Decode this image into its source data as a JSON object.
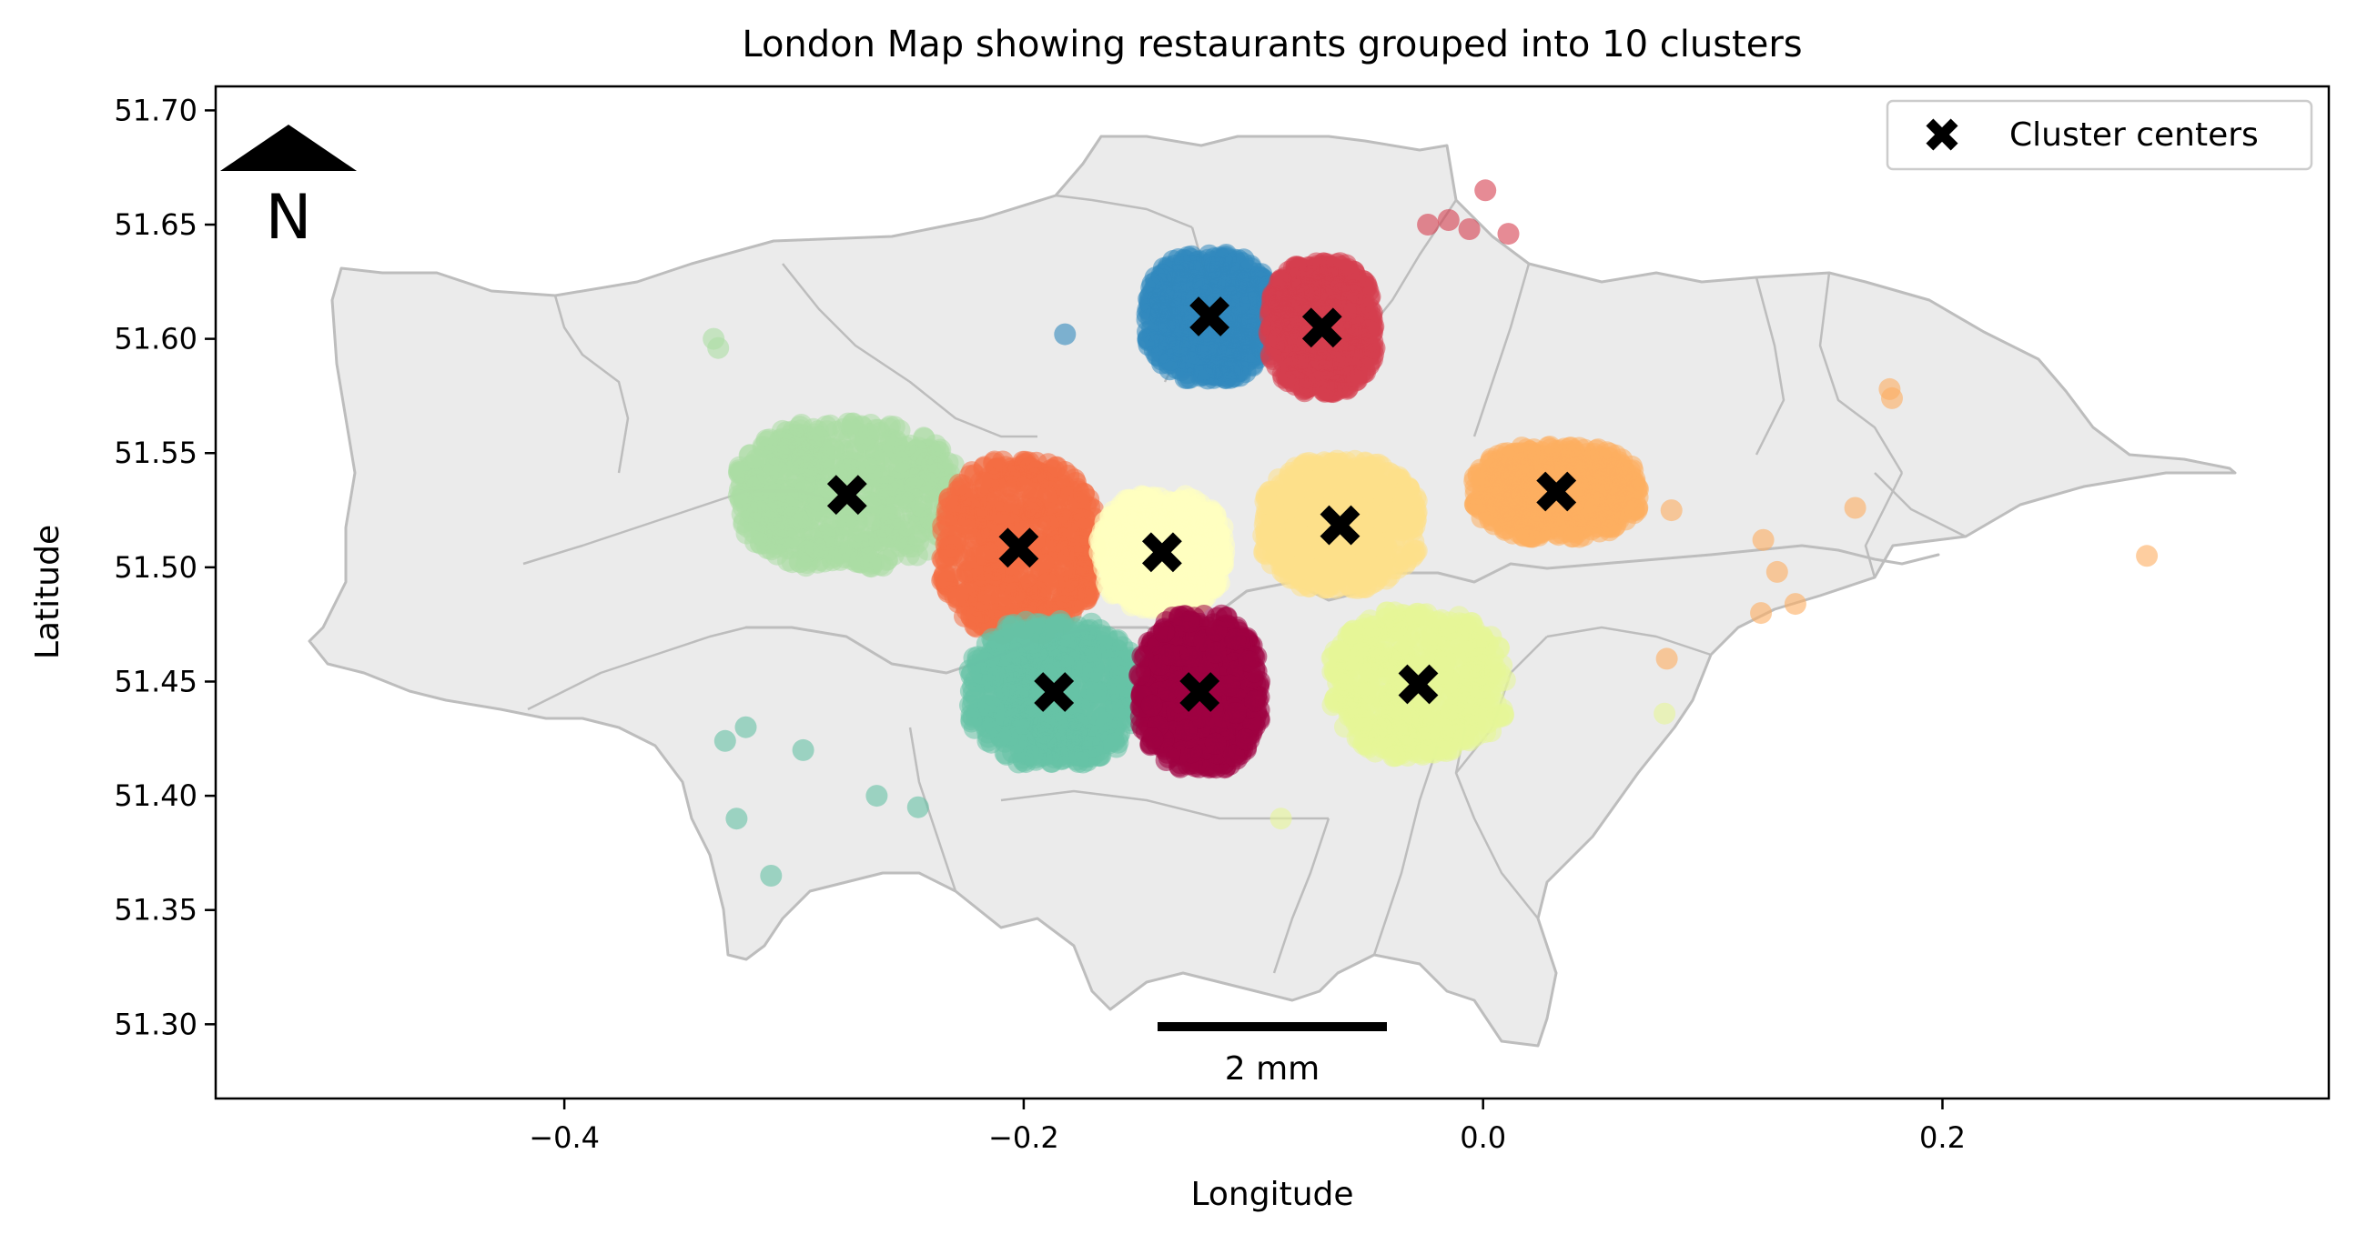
{
  "chart_data": {
    "type": "scatter",
    "title": "London Map showing restaurants grouped into 10 clusters",
    "xlabel": "Longitude",
    "ylabel": "Latitude",
    "xlim": [
      -0.5518,
      0.3682
    ],
    "ylim": [
      51.2675,
      51.7105
    ],
    "xticks": [
      {
        "value": -0.4,
        "label": "−0.4"
      },
      {
        "value": -0.2,
        "label": "−0.2"
      },
      {
        "value": 0.0,
        "label": "0.0"
      },
      {
        "value": 0.2,
        "label": "0.2"
      }
    ],
    "yticks": [
      {
        "value": 51.3,
        "label": "51.30"
      },
      {
        "value": 51.35,
        "label": "51.35"
      },
      {
        "value": 51.4,
        "label": "51.40"
      },
      {
        "value": 51.45,
        "label": "51.45"
      },
      {
        "value": 51.5,
        "label": "51.50"
      },
      {
        "value": 51.55,
        "label": "51.55"
      },
      {
        "value": 51.6,
        "label": "51.60"
      },
      {
        "value": 51.65,
        "label": "51.65"
      },
      {
        "value": 51.7,
        "label": "51.70"
      }
    ],
    "legend": {
      "label": "Cluster centers",
      "location": "upper right",
      "marker": "X"
    },
    "north_arrow": {
      "label": "N"
    },
    "scalebar": {
      "label": "2 mm"
    },
    "colors": {
      "boundary_fill": "#ebebeb",
      "boundary_edge": "#bdbdbd",
      "center_marker": "#000000"
    },
    "clusters": [
      {
        "id": 0,
        "color": "#3288bd",
        "center": {
          "lon": -0.1191,
          "lat": 51.6098
        },
        "spread": {
          "lon": 0.026,
          "lat": 0.026
        }
      },
      {
        "id": 1,
        "color": "#d53e4f",
        "center": {
          "lon": -0.0701,
          "lat": 51.6049
        },
        "spread": {
          "lon": 0.022,
          "lat": 0.027
        }
      },
      {
        "id": 2,
        "color": "#abdda4",
        "center": {
          "lon": -0.2769,
          "lat": 51.5317
        },
        "spread": {
          "lon": 0.045,
          "lat": 0.03
        }
      },
      {
        "id": 3,
        "color": "#f46d43",
        "center": {
          "lon": -0.2022,
          "lat": 51.5086
        },
        "spread": {
          "lon": 0.032,
          "lat": 0.036
        }
      },
      {
        "id": 4,
        "color": "#ffffbf",
        "center": {
          "lon": -0.1398,
          "lat": 51.5066
        },
        "spread": {
          "lon": 0.026,
          "lat": 0.024
        }
      },
      {
        "id": 5,
        "color": "#fee08b",
        "center": {
          "lon": -0.0623,
          "lat": 51.5184
        },
        "spread": {
          "lon": 0.032,
          "lat": 0.027
        }
      },
      {
        "id": 6,
        "color": "#fdae61",
        "center": {
          "lon": 0.0319,
          "lat": 51.5332
        },
        "spread": {
          "lon": 0.034,
          "lat": 0.019
        }
      },
      {
        "id": 7,
        "color": "#66c2a5",
        "center": {
          "lon": -0.1868,
          "lat": 51.4454
        },
        "spread": {
          "lon": 0.035,
          "lat": 0.03
        }
      },
      {
        "id": 8,
        "color": "#9e0142",
        "center": {
          "lon": -0.1234,
          "lat": 51.4454
        },
        "spread": {
          "lon": 0.025,
          "lat": 0.032
        }
      },
      {
        "id": 9,
        "color": "#e6f598",
        "center": {
          "lon": -0.0282,
          "lat": 51.4488
        },
        "spread": {
          "lon": 0.036,
          "lat": 0.03
        }
      }
    ],
    "outliers": [
      {
        "cluster": 0,
        "lon": -0.182,
        "lat": 51.602
      },
      {
        "cluster": 1,
        "lon": -0.015,
        "lat": 51.652
      },
      {
        "cluster": 1,
        "lon": -0.006,
        "lat": 51.648
      },
      {
        "cluster": 1,
        "lon": 0.001,
        "lat": 51.665
      },
      {
        "cluster": 1,
        "lon": 0.011,
        "lat": 51.646
      },
      {
        "cluster": 1,
        "lon": -0.024,
        "lat": 51.65
      },
      {
        "cluster": 2,
        "lon": -0.333,
        "lat": 51.596
      },
      {
        "cluster": 2,
        "lon": -0.335,
        "lat": 51.6
      },
      {
        "cluster": 6,
        "lon": 0.177,
        "lat": 51.578
      },
      {
        "cluster": 6,
        "lon": 0.178,
        "lat": 51.574
      },
      {
        "cluster": 6,
        "lon": 0.162,
        "lat": 51.526
      },
      {
        "cluster": 6,
        "lon": 0.289,
        "lat": 51.505
      },
      {
        "cluster": 6,
        "lon": 0.122,
        "lat": 51.512
      },
      {
        "cluster": 6,
        "lon": 0.128,
        "lat": 51.498
      },
      {
        "cluster": 6,
        "lon": 0.121,
        "lat": 51.48
      },
      {
        "cluster": 6,
        "lon": 0.136,
        "lat": 51.484
      },
      {
        "cluster": 6,
        "lon": 0.08,
        "lat": 51.46
      },
      {
        "cluster": 6,
        "lon": 0.082,
        "lat": 51.525
      },
      {
        "cluster": 7,
        "lon": -0.33,
        "lat": 51.424
      },
      {
        "cluster": 7,
        "lon": -0.321,
        "lat": 51.43
      },
      {
        "cluster": 7,
        "lon": -0.296,
        "lat": 51.42
      },
      {
        "cluster": 7,
        "lon": -0.325,
        "lat": 51.39
      },
      {
        "cluster": 7,
        "lon": -0.31,
        "lat": 51.365
      },
      {
        "cluster": 7,
        "lon": -0.264,
        "lat": 51.4
      },
      {
        "cluster": 7,
        "lon": -0.246,
        "lat": 51.395
      },
      {
        "cluster": 9,
        "lon": 0.079,
        "lat": 51.436
      },
      {
        "cluster": 9,
        "lon": -0.088,
        "lat": 51.39
      }
    ]
  }
}
